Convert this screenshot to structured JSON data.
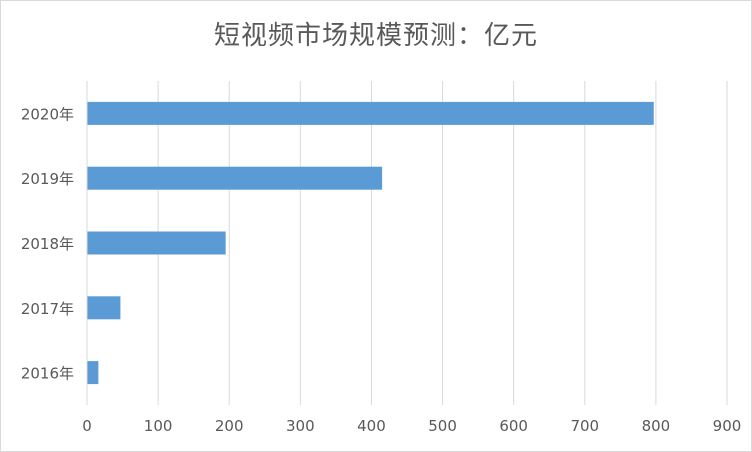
{
  "chart_data": {
    "type": "bar",
    "orientation": "horizontal",
    "title": "短视频市场规模预测：亿元",
    "xlabel": "",
    "ylabel": "",
    "categories": [
      "2016年",
      "2017年",
      "2018年",
      "2019年",
      "2020年"
    ],
    "values": [
      16,
      47,
      195,
      415,
      797
    ],
    "xlim": [
      0,
      900
    ],
    "xticks": [
      "0",
      "100",
      "200",
      "300",
      "400",
      "500",
      "600",
      "700",
      "800",
      "900"
    ],
    "grid": "vertical",
    "legend": "none",
    "colors": {
      "bar": "#5b9bd5",
      "grid": "#d9d9d9",
      "text": "#595959"
    }
  }
}
